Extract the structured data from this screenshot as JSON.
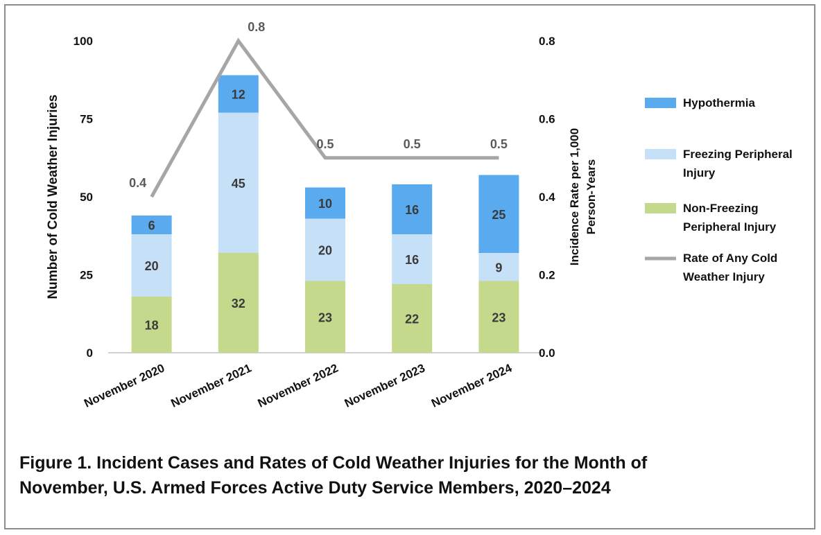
{
  "caption": {
    "line1": "Figure 1. Incident Cases and Rates of Cold Weather Injuries for the Month of",
    "line2": "November, U.S. Armed Forces Active Duty Service Members, 2020–2024"
  },
  "chart_data": {
    "type": "bar",
    "stacked": true,
    "categories": [
      "November 2020",
      "November 2021",
      "November 2022",
      "November 2023",
      "November 2024"
    ],
    "series": [
      {
        "name": "Non-Freezing Peripheral Injury",
        "values": [
          18,
          32,
          23,
          22,
          23
        ],
        "color": "#c5d98c"
      },
      {
        "name": "Freezing Peripheral Injury",
        "values": [
          20,
          45,
          20,
          16,
          9
        ],
        "color": "#c6e0f8"
      },
      {
        "name": "Hypothermia",
        "values": [
          6,
          12,
          10,
          16,
          25
        ],
        "color": "#5aaaef"
      }
    ],
    "line_series": {
      "name": "Rate of Any Cold Weather Injury",
      "values": [
        0.4,
        0.8,
        0.5,
        0.5,
        0.5
      ],
      "color": "#a6a6a6",
      "axis": "right"
    },
    "ylabel": "Number of Cold Weather Injuries",
    "y2label_line1": "Incidence Rate per 1,000",
    "y2label_line2": "Person-Years",
    "ylim": [
      0,
      100
    ],
    "y2lim": [
      0,
      0.8
    ],
    "yticks": [
      "0",
      "25",
      "50",
      "75",
      "100"
    ],
    "y2ticks": [
      "0.0",
      "0.2",
      "0.4",
      "0.6",
      "0.8"
    ],
    "grid": false,
    "legend": {
      "placement": "right",
      "entries": [
        {
          "lines": [
            "Hypothermia"
          ],
          "kind": "box",
          "color": "#5aaaef"
        },
        {
          "lines": [
            "Freezing Peripheral",
            "Injury"
          ],
          "kind": "box",
          "color": "#c6e0f8"
        },
        {
          "lines": [
            "Non-Freezing",
            "Peripheral Injury"
          ],
          "kind": "box",
          "color": "#c5d98c"
        },
        {
          "lines": [
            "Rate of Any Cold",
            "Weather Injury"
          ],
          "kind": "line",
          "color": "#a6a6a6"
        }
      ]
    }
  }
}
